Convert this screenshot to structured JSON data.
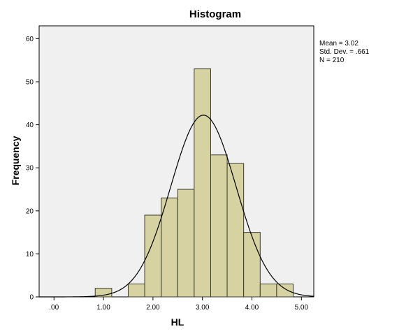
{
  "chart_data": {
    "type": "bar",
    "title": "Histogram",
    "xlabel": "HL",
    "ylabel": "Frequency",
    "xlim": [
      -0.3,
      5.25
    ],
    "ylim": [
      0,
      63
    ],
    "x_ticks": [
      {
        "value": 0,
        "label": ".00"
      },
      {
        "value": 1,
        "label": "1.00"
      },
      {
        "value": 2,
        "label": "2.00"
      },
      {
        "value": 3,
        "label": "3.00"
      },
      {
        "value": 4,
        "label": "4.00"
      },
      {
        "value": 5,
        "label": "5.00"
      }
    ],
    "y_ticks": [
      {
        "value": 0,
        "label": "0"
      },
      {
        "value": 10,
        "label": "10"
      },
      {
        "value": 20,
        "label": "20"
      },
      {
        "value": 30,
        "label": "30"
      },
      {
        "value": 40,
        "label": "40"
      },
      {
        "value": 50,
        "label": "50"
      },
      {
        "value": 60,
        "label": "60"
      }
    ],
    "bins": [
      {
        "start": 0.833,
        "end": 1.167,
        "count": 2
      },
      {
        "start": 1.5,
        "end": 1.833,
        "count": 3
      },
      {
        "start": 1.833,
        "end": 2.167,
        "count": 19
      },
      {
        "start": 2.167,
        "end": 2.5,
        "count": 23
      },
      {
        "start": 2.5,
        "end": 2.833,
        "count": 25
      },
      {
        "start": 2.833,
        "end": 3.167,
        "count": 53
      },
      {
        "start": 3.167,
        "end": 3.5,
        "count": 33
      },
      {
        "start": 3.5,
        "end": 3.833,
        "count": 31
      },
      {
        "start": 3.833,
        "end": 4.167,
        "count": 15
      },
      {
        "start": 4.167,
        "end": 4.5,
        "count": 3
      },
      {
        "start": 4.5,
        "end": 4.833,
        "count": 3
      }
    ],
    "normal_curve": {
      "mean": 3.02,
      "sd": 0.661,
      "n": 210,
      "bin_width": 0.3333
    },
    "stats": [
      "Mean = 3.02",
      "Std. Dev. = .661",
      "N = 210"
    ],
    "colors": {
      "bar_fill": "#d6d2a2",
      "bar_stroke": "#3a3a2a",
      "plot_bg": "#f0f0f0",
      "curve": "#000000"
    },
    "grid": false,
    "legend": "none"
  }
}
